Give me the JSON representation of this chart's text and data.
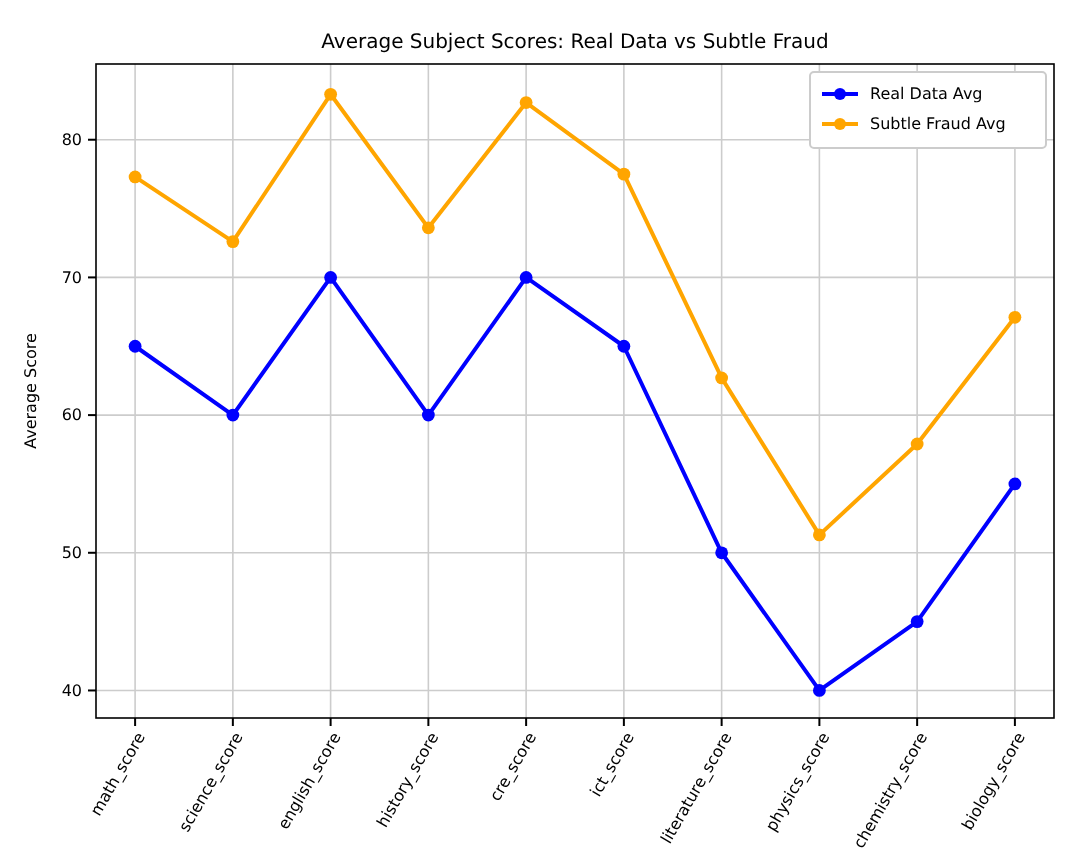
{
  "chart_data": {
    "type": "line",
    "title": "Average Subject Scores: Real Data vs Subtle Fraud",
    "ylabel": "Average Score",
    "categories": [
      "math_score",
      "science_score",
      "english_score",
      "history_score",
      "cre_score",
      "ict_score",
      "literature_score",
      "physics_score",
      "chemistry_score",
      "biology_score"
    ],
    "series": [
      {
        "name": "Real Data Avg",
        "color": "#0000ff",
        "values": [
          65,
          60,
          70,
          60,
          70,
          65,
          50,
          40,
          45,
          55
        ]
      },
      {
        "name": "Subtle Fraud Avg",
        "color": "#ffa500",
        "values": [
          77.3,
          72.6,
          83.3,
          73.6,
          82.7,
          77.5,
          62.7,
          51.3,
          57.9,
          67.1
        ]
      }
    ],
    "ylim": [
      38,
      85.5
    ],
    "yticks": [
      40,
      50,
      60,
      70,
      80
    ],
    "grid": true,
    "legend": "top right",
    "marker": "circle",
    "line_style": "solid"
  }
}
